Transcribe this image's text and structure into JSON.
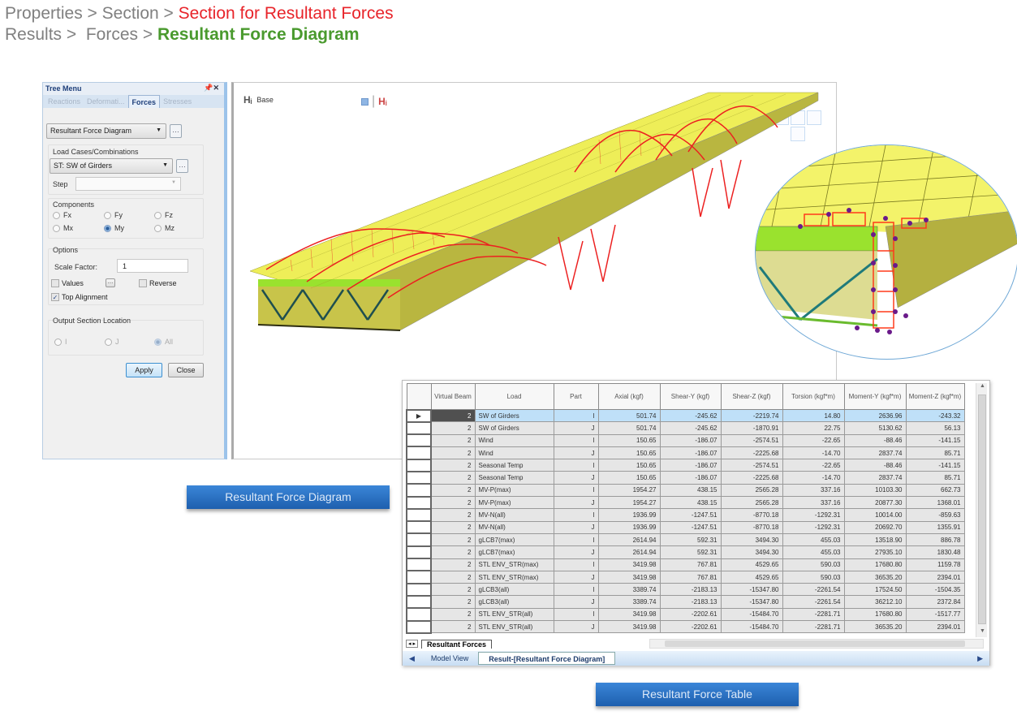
{
  "breadcrumbs": {
    "line1": [
      "Properties",
      " > ",
      "Section",
      " > ",
      "Section for Resultant Forces"
    ],
    "line2": [
      "Results",
      " >  ",
      "Forces",
      " > ",
      "Resultant Force Diagram"
    ]
  },
  "tree_menu": {
    "title": "Tree Menu",
    "controls": "↑ ✕",
    "tabs": [
      "Reactions",
      "Deformati...",
      "Forces",
      "Stresses"
    ],
    "active_tab": "Forces",
    "result_type": "Resultant Force Diagram",
    "load_cases_label": "Load Cases/Combinations",
    "load_case": "ST: SW of Girders",
    "step_label": "Step",
    "step_value": "",
    "components_label": "Components",
    "components": [
      "Fx",
      "Fy",
      "Fz",
      "Mx",
      "My",
      "Mz"
    ],
    "selected_component": "My",
    "options_label": "Options",
    "scale_factor_label": "Scale Factor:",
    "scale_factor": "1",
    "values_label": "Values",
    "reverse_label": "Reverse",
    "top_alignment_label": "Top Alignment",
    "top_alignment_checked": true,
    "output_location_label": "Output Section Location",
    "output_locations": [
      "I",
      "J",
      "All"
    ],
    "selected_location": "All",
    "apply_label": "Apply",
    "close_label": "Close"
  },
  "viewport": {
    "base_label": "Base",
    "colors": {
      "deck": "#f2f25a",
      "diagram": "#ee2222",
      "flange": "#9ae22e",
      "brace": "#1f7a7a"
    }
  },
  "label_diagram": "Resultant Force Diagram",
  "label_table": "Resultant Force Table",
  "table": {
    "headers": [
      "",
      "Virtual Beam",
      "Load",
      "Part",
      "Axial (kgf)",
      "Shear-Y (kgf)",
      "Shear-Z (kgf)",
      "Torsion (kgf*m)",
      "Moment-Y (kgf*m)",
      "Moment-Z (kgf*m)"
    ],
    "rows": [
      [
        "2",
        "SW of Girders",
        "I",
        "501.74",
        "-245.62",
        "-2219.74",
        "14.80",
        "2636.96",
        "-243.32"
      ],
      [
        "2",
        "SW of Girders",
        "J",
        "501.74",
        "-245.62",
        "-1870.91",
        "22.75",
        "5130.62",
        "56.13"
      ],
      [
        "2",
        "Wind",
        "I",
        "150.65",
        "-186.07",
        "-2574.51",
        "-22.65",
        "-88.46",
        "-141.15"
      ],
      [
        "2",
        "Wind",
        "J",
        "150.65",
        "-186.07",
        "-2225.68",
        "-14.70",
        "2837.74",
        "85.71"
      ],
      [
        "2",
        "Seasonal Temp",
        "I",
        "150.65",
        "-186.07",
        "-2574.51",
        "-22.65",
        "-88.46",
        "-141.15"
      ],
      [
        "2",
        "Seasonal Temp",
        "J",
        "150.65",
        "-186.07",
        "-2225.68",
        "-14.70",
        "2837.74",
        "85.71"
      ],
      [
        "2",
        "MV-P(max)",
        "I",
        "1954.27",
        "438.15",
        "2565.28",
        "337.16",
        "10103.30",
        "662.73"
      ],
      [
        "2",
        "MV-P(max)",
        "J",
        "1954.27",
        "438.15",
        "2565.28",
        "337.16",
        "20877.30",
        "1368.01"
      ],
      [
        "2",
        "MV-N(all)",
        "I",
        "1936.99",
        "-1247.51",
        "-8770.18",
        "-1292.31",
        "10014.00",
        "-859.63"
      ],
      [
        "2",
        "MV-N(all)",
        "J",
        "1936.99",
        "-1247.51",
        "-8770.18",
        "-1292.31",
        "20692.70",
        "1355.91"
      ],
      [
        "2",
        "gLCB7(max)",
        "I",
        "2614.94",
        "592.31",
        "3494.30",
        "455.03",
        "13518.90",
        "886.78"
      ],
      [
        "2",
        "gLCB7(max)",
        "J",
        "2614.94",
        "592.31",
        "3494.30",
        "455.03",
        "27935.10",
        "1830.48"
      ],
      [
        "2",
        "STL ENV_STR(max)",
        "I",
        "3419.98",
        "767.81",
        "4529.65",
        "590.03",
        "17680.80",
        "1159.78"
      ],
      [
        "2",
        "STL ENV_STR(max)",
        "J",
        "3419.98",
        "767.81",
        "4529.65",
        "590.03",
        "36535.20",
        "2394.01"
      ],
      [
        "2",
        "gLCB3(all)",
        "I",
        "3389.74",
        "-2183.13",
        "-15347.80",
        "-2261.54",
        "17524.50",
        "-1504.35"
      ],
      [
        "2",
        "gLCB3(all)",
        "J",
        "3389.74",
        "-2183.13",
        "-15347.80",
        "-2261.54",
        "36212.10",
        "2372.84"
      ],
      [
        "2",
        "STL ENV_STR(all)",
        "I",
        "3419.98",
        "-2202.61",
        "-15484.70",
        "-2281.71",
        "17680.80",
        "-1517.77"
      ],
      [
        "2",
        "STL ENV_STR(all)",
        "J",
        "3419.98",
        "-2202.61",
        "-15484.70",
        "-2281.71",
        "36535.20",
        "2394.01"
      ]
    ],
    "active_row": 0,
    "sheet_tab": "Resultant Forces",
    "sheet_nav": "◂ ▸",
    "doc_tabs": [
      "Model View",
      "Result-[Resultant Force Diagram]"
    ],
    "active_doc_tab": "Result-[Resultant Force Diagram]"
  }
}
